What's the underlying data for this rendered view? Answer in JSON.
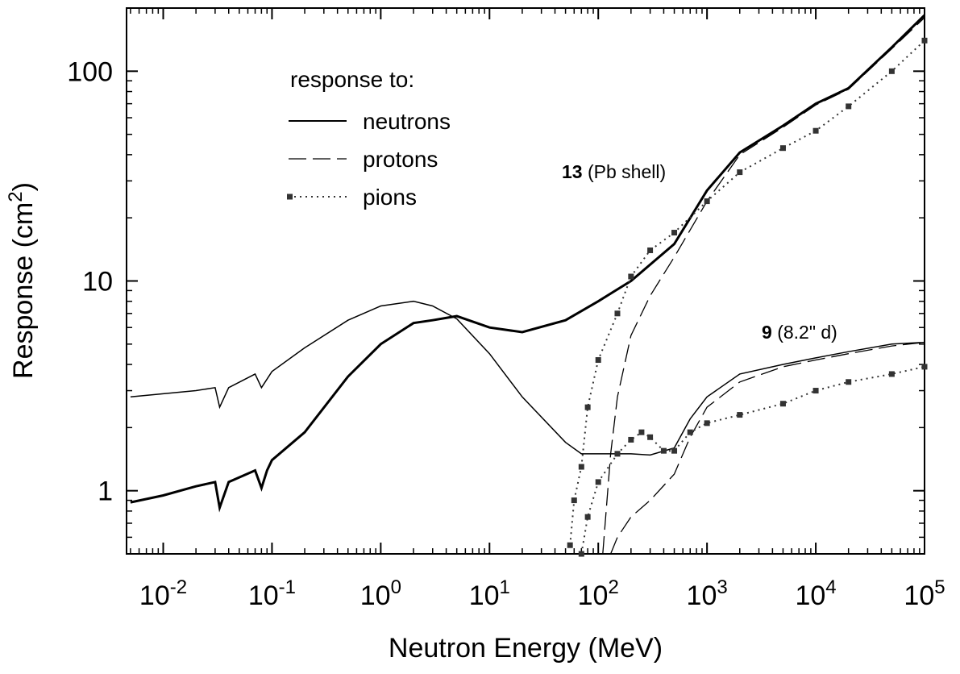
{
  "chart_data": {
    "type": "line",
    "log_x": true,
    "log_y": true,
    "x_label": "Neutron Energy (MeV)",
    "y_label": {
      "text": "Response  (cm",
      "sup": "2",
      "end": ")"
    },
    "xlim": [
      0.0046,
      100000
    ],
    "ylim": [
      0.5,
      200
    ],
    "xticks": [
      {
        "value": 0.01,
        "label": "10",
        "exponent": "-2"
      },
      {
        "value": 0.1,
        "label": "10",
        "exponent": "-1"
      },
      {
        "value": 1,
        "label": "10",
        "exponent": "0"
      },
      {
        "value": 10,
        "label": "10",
        "exponent": "1"
      },
      {
        "value": 100,
        "label": "10",
        "exponent": "2"
      },
      {
        "value": 1000,
        "label": "10",
        "exponent": "3"
      },
      {
        "value": 10000,
        "label": "10",
        "exponent": "4"
      },
      {
        "value": 100000,
        "label": "10",
        "exponent": "5"
      }
    ],
    "yticks": [
      1,
      10,
      100
    ],
    "legend_title": "response to:",
    "annotations": [
      {
        "bold": "13",
        "text": "(Pb shell)"
      },
      {
        "bold": "9",
        "text": "(8.2\" d)"
      }
    ],
    "series": [
      {
        "name": "neutrons",
        "color": "#000000",
        "style": "solid",
        "width": 3,
        "x": [
          0.005,
          0.01,
          0.02,
          0.03,
          0.033,
          0.04,
          0.07,
          0.08,
          0.09,
          0.1,
          0.2,
          0.5,
          1,
          2,
          3,
          5,
          10,
          20,
          50,
          100,
          200,
          500,
          1000,
          2000,
          5000,
          10000,
          20000,
          50000,
          100000
        ],
        "values": [
          0.88,
          0.95,
          1.05,
          1.1,
          0.83,
          1.1,
          1.25,
          1.03,
          1.25,
          1.4,
          1.9,
          3.5,
          5.0,
          6.3,
          6.5,
          6.8,
          6.0,
          5.7,
          6.5,
          8.0,
          10,
          15,
          27,
          41,
          55,
          70,
          83,
          130,
          185
        ]
      },
      {
        "name": "protons",
        "color": "#000000",
        "style": "dashed",
        "width": 1.3,
        "x": [
          110,
          130,
          150,
          200,
          300,
          500,
          1000,
          2000,
          5000,
          10000,
          20000,
          50000,
          100000
        ],
        "values": [
          0.5,
          1.5,
          2.8,
          5.5,
          8.5,
          13,
          24,
          40,
          54,
          69,
          82,
          128,
          180
        ]
      },
      {
        "name": "pions",
        "color": "#333333",
        "style": "dotted",
        "width": 2,
        "x": [
          55,
          60,
          70,
          80,
          100,
          150,
          200,
          300,
          500,
          1000,
          2000,
          5000,
          10000,
          20000,
          50000,
          100000
        ],
        "values": [
          0.55,
          0.9,
          1.3,
          2.5,
          4.2,
          7,
          10.5,
          14,
          17,
          24,
          33,
          43,
          52,
          68,
          100,
          140
        ]
      },
      {
        "name": "neutrons",
        "color": "#000000",
        "style": "solid",
        "width": 1.5,
        "x": [
          0.005,
          0.01,
          0.02,
          0.03,
          0.033,
          0.04,
          0.07,
          0.08,
          0.1,
          0.2,
          0.5,
          1,
          2,
          3,
          5,
          10,
          20,
          50,
          70,
          100,
          200,
          300,
          500,
          700,
          1000,
          2000,
          5000,
          10000,
          20000,
          50000,
          100000
        ],
        "values": [
          2.8,
          2.9,
          3.0,
          3.1,
          2.5,
          3.1,
          3.6,
          3.1,
          3.7,
          4.8,
          6.5,
          7.6,
          8.0,
          7.6,
          6.6,
          4.5,
          2.8,
          1.7,
          1.5,
          1.5,
          1.5,
          1.48,
          1.6,
          2.2,
          2.8,
          3.6,
          4.0,
          4.3,
          4.6,
          5.0,
          5.1
        ]
      },
      {
        "name": "protons",
        "color": "#000000",
        "style": "dashed",
        "width": 1.3,
        "x": [
          130,
          150,
          200,
          300,
          500,
          700,
          1000,
          2000,
          5000,
          10000,
          20000,
          50000,
          100000
        ],
        "values": [
          0.5,
          0.6,
          0.75,
          0.9,
          1.2,
          1.8,
          2.5,
          3.3,
          3.9,
          4.2,
          4.5,
          4.9,
          5.1
        ]
      },
      {
        "name": "pions",
        "color": "#333333",
        "style": "dotted",
        "width": 2,
        "x": [
          70,
          80,
          100,
          150,
          200,
          250,
          300,
          400,
          500,
          700,
          1000,
          2000,
          5000,
          10000,
          20000,
          50000,
          100000
        ],
        "values": [
          0.5,
          0.75,
          1.1,
          1.5,
          1.75,
          1.9,
          1.8,
          1.55,
          1.55,
          1.9,
          2.1,
          2.3,
          2.6,
          3.0,
          3.3,
          3.6,
          3.9
        ]
      }
    ]
  }
}
